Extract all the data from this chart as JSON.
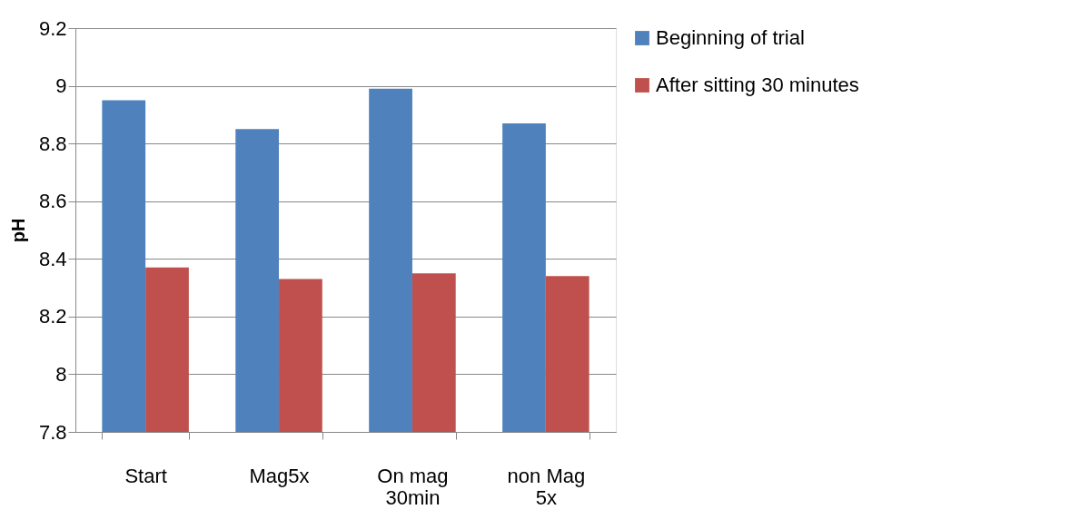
{
  "chart_data": {
    "type": "bar",
    "ylabel": "pH",
    "categories": [
      "Start",
      "Mag5x",
      "On mag 30min",
      "non Mag 5x"
    ],
    "series": [
      {
        "name": "Beginning of trial",
        "color": "#4f81bd",
        "values": [
          8.95,
          8.85,
          8.99,
          8.87
        ]
      },
      {
        "name": "After sitting 30 minutes",
        "color": "#c0504d",
        "values": [
          8.37,
          8.33,
          8.35,
          8.34
        ]
      }
    ],
    "ylim": [
      7.8,
      9.2
    ],
    "yticks": [
      7.8,
      8,
      8.2,
      8.4,
      8.6,
      8.8,
      9,
      9.2
    ],
    "grid": "y",
    "legend": "right"
  }
}
